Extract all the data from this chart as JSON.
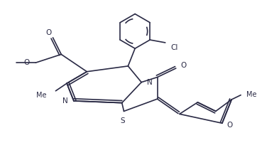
{
  "bg_color": "#ffffff",
  "line_color": "#2a2a45",
  "line_width": 1.2,
  "font_size": 7.0,
  "fig_width": 3.62,
  "fig_height": 2.25,
  "dpi": 100,
  "xlim": [
    0,
    9.0
  ],
  "ylim": [
    0,
    5.6
  ]
}
